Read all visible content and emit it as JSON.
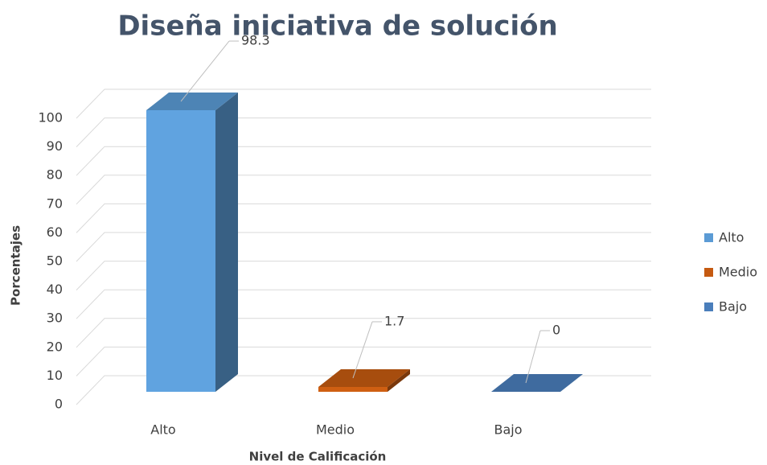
{
  "chart_data": {
    "type": "bar3d",
    "title": "Diseña iniciativa de solución",
    "categories": [
      "Alto",
      "Medio",
      "Bajo"
    ],
    "values": [
      98.3,
      1.7,
      0
    ],
    "colors": [
      "#5b9bd5",
      "#c55a11",
      "#4a7ebb"
    ],
    "ylim": [
      0,
      100
    ],
    "yticks": [
      0,
      10,
      20,
      30,
      40,
      50,
      60,
      70,
      80,
      90,
      100
    ],
    "xlabel": "Nivel de Calificación",
    "ylabel": "Porcentajes",
    "grid": true,
    "legend": "right"
  }
}
